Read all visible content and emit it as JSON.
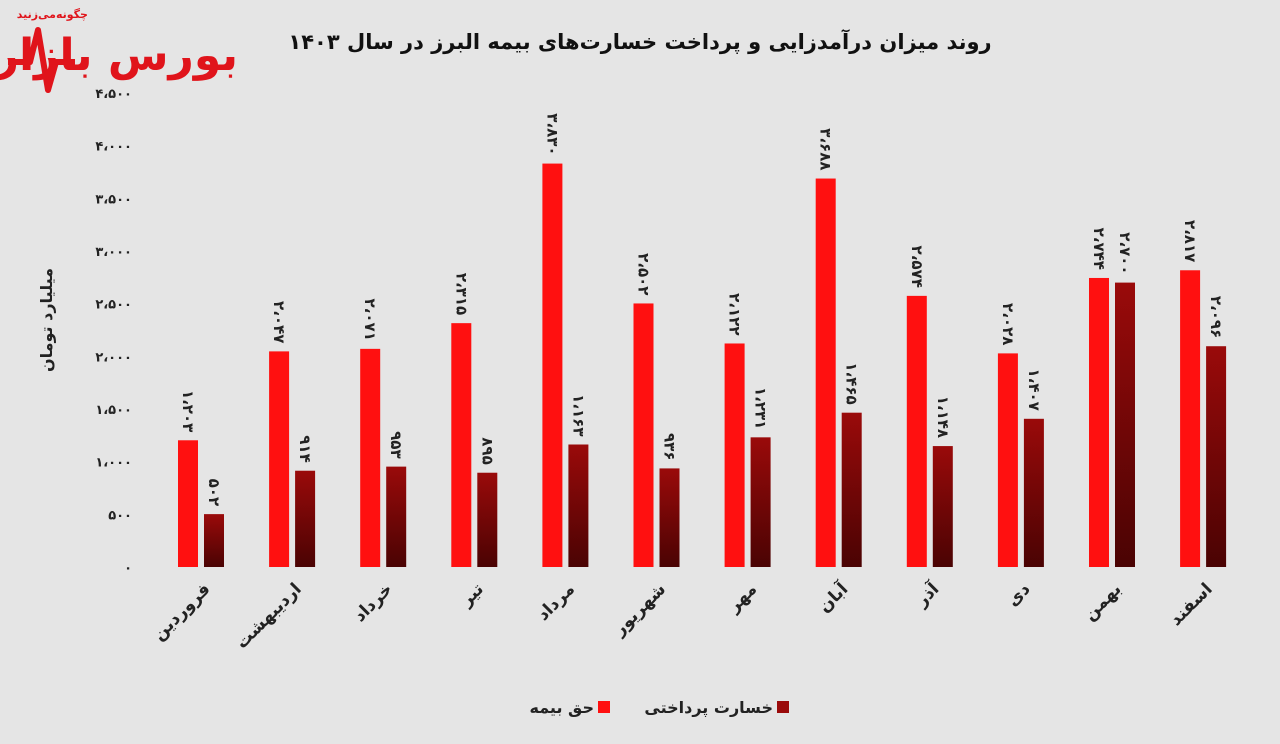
{
  "logo": {
    "text": "بورس بازار",
    "tagline": "چگونه‌می‌زنید",
    "color": "#e0141b"
  },
  "chart_data": {
    "type": "bar",
    "title": "روند میزان درآمدزایی و پرداخت خسارت‌های  بیمه البرز در سال ۱۴۰۳",
    "ylabel": "میلیارد تومان",
    "xlabel": "",
    "ylim": [
      0,
      4500
    ],
    "yticks": [
      0,
      500,
      1000,
      1500,
      2000,
      2500,
      3000,
      3500,
      4000,
      4500
    ],
    "ytick_labels": [
      "۰",
      "۵۰۰",
      "۱،۰۰۰",
      "۱،۵۰۰",
      "۲،۰۰۰",
      "۲،۵۰۰",
      "۳،۰۰۰",
      "۳،۵۰۰",
      "۴،۰۰۰",
      "۴،۵۰۰"
    ],
    "grid": false,
    "legend_position": "bottom",
    "categories": [
      "فروردین",
      "اردیبهشت",
      "خرداد",
      "تیر",
      "مرداد",
      "شهریور",
      "مهر",
      "آبان",
      "آذر",
      "دی",
      "بهمن",
      "اسفند"
    ],
    "series": [
      {
        "name": "حق بیمه",
        "color": "#ff1010",
        "values": [
          1203,
          2047,
          2071,
          2315,
          3830,
          2502,
          2122,
          3688,
          2574,
          2028,
          2744,
          2817
        ],
        "labels": [
          "۱،۲۰۳",
          "۲،۰۴۷",
          "۲،۰۷۱",
          "۲،۳۱۵",
          "۳،۸۳۰",
          "۲،۵۰۲",
          "۲،۱۲۲",
          "۳،۶۸۸",
          "۲،۵۷۴",
          "۲،۰۲۸",
          "۲،۷۴۴",
          "۲،۸۱۷"
        ]
      },
      {
        "name": "خسارت پرداختی",
        "color": "#9a0a0a",
        "values": [
          502,
          914,
          953,
          895,
          1163,
          936,
          1231,
          1465,
          1148,
          1407,
          2700,
          2096
        ],
        "labels": [
          "۵۰۲",
          "۹۱۴",
          "۹۵۳",
          "۸۹۵",
          "۱،۱۶۳",
          "۹۳۶",
          "۱،۲۳۱",
          "۱،۴۶۵",
          "۱،۱۴۸",
          "۱،۴۰۷",
          "۲،۷۰۰",
          "۲،۰۹۶"
        ]
      }
    ]
  }
}
